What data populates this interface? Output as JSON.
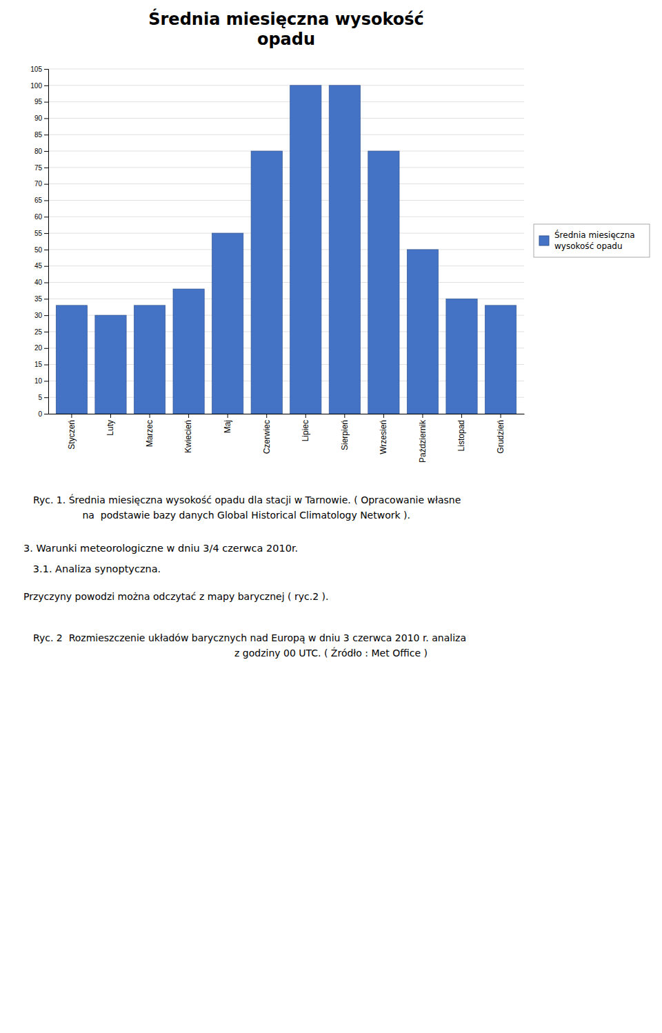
{
  "chart_data": {
    "type": "bar",
    "title": "Średnia miesięczna wysokość\nopadu",
    "categories": [
      "Styczeń",
      "Luty",
      "Marzec",
      "Kwiecień",
      "Maj",
      "Czerwiec",
      "Lipiec",
      "Sierpień",
      "Wrzesień",
      "Październik",
      "Listopad",
      "Grudzień"
    ],
    "series": [
      {
        "name": "Średnia miesięczna\nwysokość opadu",
        "color": "#4472C4",
        "values": [
          33,
          30,
          33,
          38,
          55,
          80,
          100,
          100,
          80,
          50,
          35,
          33
        ]
      }
    ],
    "ylim": [
      0,
      105
    ],
    "yticks": [
      0,
      5,
      10,
      15,
      20,
      25,
      30,
      35,
      40,
      45,
      50,
      55,
      60,
      65,
      70,
      75,
      80,
      85,
      90,
      95,
      100,
      105
    ],
    "grid": true,
    "legend": "right",
    "annotations": [
      "Ryc. 1. Średnia miesięczna wysokość opadu dla stacji w Tarnowie. ( Opracowanie własne",
      " na  podstawie bazy danych Global Historical Climatology Network ).",
      "3. Warunki meteorologiczne w dniu 3/4 czerwca 2010r.",
      "   3.1. Analiza synoptyczna.",
      "Przyczyny powodzi można odczytać z mapy barycznej ( ryc.2 ).",
      "Ryc. 2  Rozmieszczenie układów barycznych nad Europą w dniu 3 czerwca 2010 r. analiza",
      "z godziny 00 UTC. ( Źródło : Met Office )"
    ]
  }
}
